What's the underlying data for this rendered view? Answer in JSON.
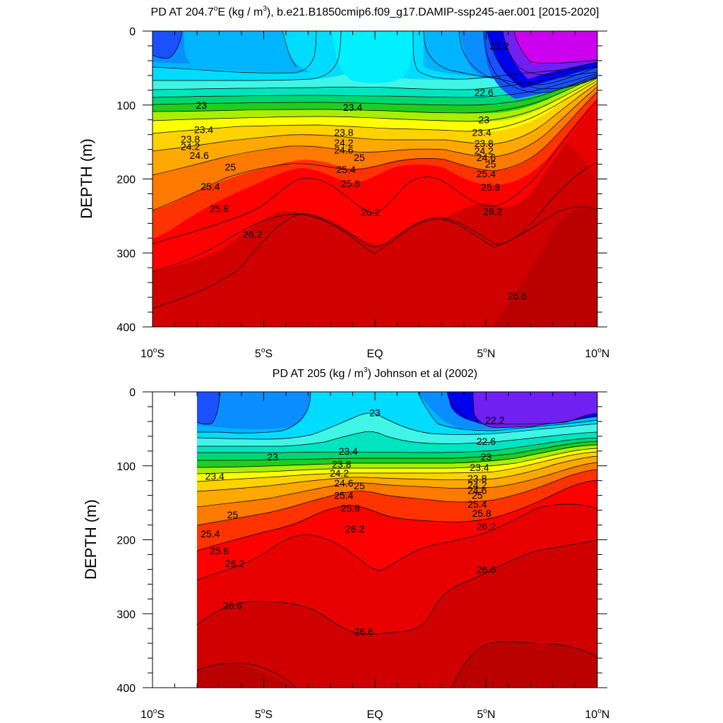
{
  "chart_data": [
    {
      "type": "contour",
      "title_prefix": "PD AT 204.7",
      "title_deg": "o",
      "title_unit_pre": "E (kg / m",
      "title_unit_exp": "3",
      "title_suffix": "), b.e21.B1850cmip6.f09_g17.DAMIP-ssp245-aer.001 [2015-2020]",
      "ylabel": "DEPTH (m)",
      "xlim": [
        -10,
        10
      ],
      "ylim": [
        400,
        0
      ],
      "x_ticks": [
        {
          "v": -10,
          "label": "10",
          "deg": "o",
          "hemi": "S"
        },
        {
          "v": -5,
          "label": "5",
          "deg": "o",
          "hemi": "S"
        },
        {
          "v": 0,
          "label": "EQ",
          "deg": "",
          "hemi": ""
        },
        {
          "v": 5,
          "label": "5",
          "deg": "o",
          "hemi": "N"
        },
        {
          "v": 10,
          "label": "10",
          "deg": "o",
          "hemi": "N"
        }
      ],
      "y_ticks": [
        "0",
        "100",
        "200",
        "300",
        "400"
      ],
      "y_tick_values": [
        0,
        100,
        200,
        300,
        400
      ],
      "data_x_range": [
        -10,
        10
      ],
      "contour_labels": [
        {
          "text": "22.2",
          "x": 5.6,
          "y": 20
        },
        {
          "text": "22.6",
          "x": 4.9,
          "y": 83
        },
        {
          "text": "23",
          "x": -7.8,
          "y": 100
        },
        {
          "text": "23.4",
          "x": -1.0,
          "y": 103
        },
        {
          "text": "23",
          "x": 4.9,
          "y": 120
        },
        {
          "text": "23.4",
          "x": -7.7,
          "y": 133
        },
        {
          "text": "23.8",
          "x": -1.4,
          "y": 137
        },
        {
          "text": "23.4",
          "x": 4.8,
          "y": 137
        },
        {
          "text": "23.8",
          "x": -8.3,
          "y": 146
        },
        {
          "text": "24.2",
          "x": -1.4,
          "y": 151
        },
        {
          "text": "23.8",
          "x": 4.9,
          "y": 152
        },
        {
          "text": "24.2",
          "x": -8.3,
          "y": 156
        },
        {
          "text": "24.6",
          "x": -1.4,
          "y": 161
        },
        {
          "text": "24.2",
          "x": 4.9,
          "y": 162
        },
        {
          "text": "24.6",
          "x": -7.9,
          "y": 168
        },
        {
          "text": "25",
          "x": -0.7,
          "y": 171
        },
        {
          "text": "24.6",
          "x": 5.0,
          "y": 171
        },
        {
          "text": "25",
          "x": 5.2,
          "y": 180
        },
        {
          "text": "25",
          "x": -6.5,
          "y": 184
        },
        {
          "text": "25.4",
          "x": -1.3,
          "y": 187
        },
        {
          "text": "25.4",
          "x": 5.0,
          "y": 193
        },
        {
          "text": "25.8",
          "x": -1.1,
          "y": 206
        },
        {
          "text": "25.4",
          "x": -7.4,
          "y": 210
        },
        {
          "text": "25.8",
          "x": 5.2,
          "y": 211
        },
        {
          "text": "25.8",
          "x": -7.0,
          "y": 240
        },
        {
          "text": "26.2",
          "x": -0.2,
          "y": 245
        },
        {
          "text": "26.2",
          "x": 5.3,
          "y": 244
        },
        {
          "text": "26.2",
          "x": -5.5,
          "y": 275
        },
        {
          "text": "26.6",
          "x": 6.4,
          "y": 358
        }
      ]
    },
    {
      "type": "contour",
      "title_prefix": "PD AT 205 (kg / m",
      "title_deg": "",
      "title_unit_pre": "",
      "title_unit_exp": "3",
      "title_suffix": ") Johnson et al (2002)",
      "ylabel": "DEPTH (m)",
      "xlim": [
        -10,
        10
      ],
      "ylim": [
        400,
        0
      ],
      "x_ticks": [
        {
          "v": -10,
          "label": "10",
          "deg": "o",
          "hemi": "S"
        },
        {
          "v": -5,
          "label": "5",
          "deg": "o",
          "hemi": "S"
        },
        {
          "v": 0,
          "label": "EQ",
          "deg": "",
          "hemi": ""
        },
        {
          "v": 5,
          "label": "5",
          "deg": "o",
          "hemi": "N"
        },
        {
          "v": 10,
          "label": "10",
          "deg": "o",
          "hemi": "N"
        }
      ],
      "y_ticks": [
        "0",
        "100",
        "200",
        "300",
        "400"
      ],
      "y_tick_values": [
        0,
        100,
        200,
        300,
        400
      ],
      "data_x_range": [
        -8,
        10
      ],
      "contour_labels": [
        {
          "text": "23",
          "x": 0.0,
          "y": 28
        },
        {
          "text": "22.2",
          "x": 5.4,
          "y": 38
        },
        {
          "text": "22.6",
          "x": 5.0,
          "y": 67
        },
        {
          "text": "23.4",
          "x": -1.2,
          "y": 80
        },
        {
          "text": "23",
          "x": -4.6,
          "y": 88
        },
        {
          "text": "23",
          "x": 5.0,
          "y": 88
        },
        {
          "text": "23.8",
          "x": -1.5,
          "y": 98
        },
        {
          "text": "23.4",
          "x": 4.7,
          "y": 102
        },
        {
          "text": "23.4",
          "x": -7.2,
          "y": 114
        },
        {
          "text": "24.2",
          "x": -1.6,
          "y": 110
        },
        {
          "text": "23.8",
          "x": 4.6,
          "y": 117
        },
        {
          "text": "24.6",
          "x": -1.4,
          "y": 123
        },
        {
          "text": "24.2",
          "x": 4.6,
          "y": 126
        },
        {
          "text": "25",
          "x": -0.7,
          "y": 127
        },
        {
          "text": "24.6",
          "x": 4.6,
          "y": 133
        },
        {
          "text": "25.4",
          "x": -1.4,
          "y": 140
        },
        {
          "text": "25",
          "x": 4.6,
          "y": 140
        },
        {
          "text": "25.4",
          "x": 4.6,
          "y": 152
        },
        {
          "text": "25.8",
          "x": -1.1,
          "y": 157
        },
        {
          "text": "25.8",
          "x": 4.8,
          "y": 164
        },
        {
          "text": "25",
          "x": -6.4,
          "y": 166
        },
        {
          "text": "26.2",
          "x": -0.9,
          "y": 185
        },
        {
          "text": "26.2",
          "x": 5.0,
          "y": 182
        },
        {
          "text": "25.4",
          "x": -7.4,
          "y": 192
        },
        {
          "text": "25.8",
          "x": -7.0,
          "y": 215
        },
        {
          "text": "26.2",
          "x": -6.3,
          "y": 232
        },
        {
          "text": "26.6",
          "x": 5.0,
          "y": 240
        },
        {
          "text": "26.6",
          "x": -6.4,
          "y": 289
        },
        {
          "text": "26.6",
          "x": -0.5,
          "y": 324
        }
      ]
    }
  ],
  "colors": {
    "frame": "#000000",
    "band_1": "#1a50ff",
    "band_2": "#0a8eff",
    "band_3": "#00b4ff",
    "band_4": "#00dcff",
    "band_5": "#00f0ff",
    "band_6": "#40f5e5",
    "band_7": "#00e4c0",
    "band_8": "#00d670",
    "band_9": "#20cc20",
    "band_10": "#aaee00",
    "band_11": "#ffff00",
    "band_12": "#ffd200",
    "band_13": "#ffa800",
    "band_14": "#ff7a00",
    "band_15": "#ff3300",
    "band_16": "#ff0000",
    "band_17": "#e80000",
    "band_18": "#d00000",
    "band_19": "#bb0000",
    "deep_blue": "#0000ee",
    "violet": "#7020f0",
    "magenta": "#cc00ee"
  }
}
